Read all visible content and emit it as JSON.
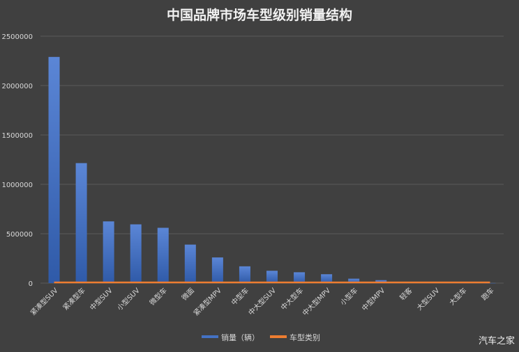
{
  "watermark": "汽车之家",
  "chart_data": {
    "type": "bar",
    "title": "中国品牌市场车型级别销量结构",
    "xlabel": "",
    "ylabel": "",
    "ylim": [
      0,
      2500000
    ],
    "yticks": [
      0,
      500000,
      1000000,
      1500000,
      2000000,
      2500000
    ],
    "grid": true,
    "legend_position": "bottom",
    "categories": [
      "紧凑型SUV",
      "紧凑型车",
      "中型SUV",
      "小型SUV",
      "微型车",
      "微面",
      "紧凑型MPV",
      "中型车",
      "中大型SUV",
      "中大型车",
      "中大型MPV",
      "小型车",
      "中型MPV",
      "轻客",
      "大型SUV",
      "大型车",
      "跑车"
    ],
    "series": [
      {
        "name": "销量（辆）",
        "kind": "bar",
        "color": "#4472c4",
        "values": [
          2290000,
          1215000,
          625000,
          595000,
          560000,
          390000,
          260000,
          170000,
          125000,
          110000,
          90000,
          45000,
          30000,
          6000,
          4000,
          3000,
          1000
        ]
      },
      {
        "name": "车型类别",
        "kind": "line",
        "color": "#ed7d31",
        "values": [
          0,
          0,
          0,
          0,
          0,
          0,
          0,
          0,
          0,
          0,
          0,
          0,
          0,
          0,
          0,
          0,
          0
        ]
      }
    ]
  }
}
